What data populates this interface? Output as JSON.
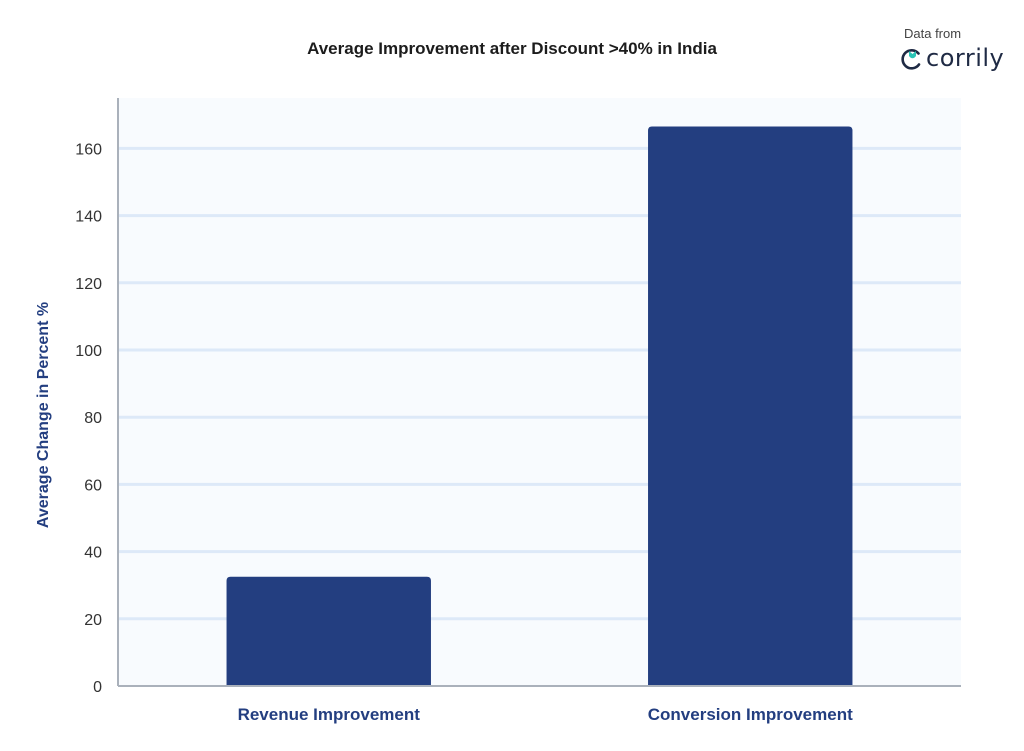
{
  "header": {
    "brand_caption": "Data from",
    "brand_name": "corrily"
  },
  "chart_data": {
    "type": "bar",
    "title": "Average Improvement after Discount >40% in India",
    "xlabel": "",
    "ylabel": "Average Change in Percent %",
    "categories": [
      "Revenue Improvement",
      "Conversion Improvement"
    ],
    "values": [
      32.5,
      166.5
    ],
    "ylim": [
      0,
      175
    ],
    "yticks": [
      0,
      20,
      40,
      60,
      80,
      100,
      120,
      140,
      160
    ],
    "grid": true,
    "legend": "none",
    "colors": {
      "bar": "#233e80",
      "plot_background": "#f8fbfe",
      "grid": "#dde9f8",
      "axis": "#aab1bb",
      "accent": "#233e80"
    }
  }
}
